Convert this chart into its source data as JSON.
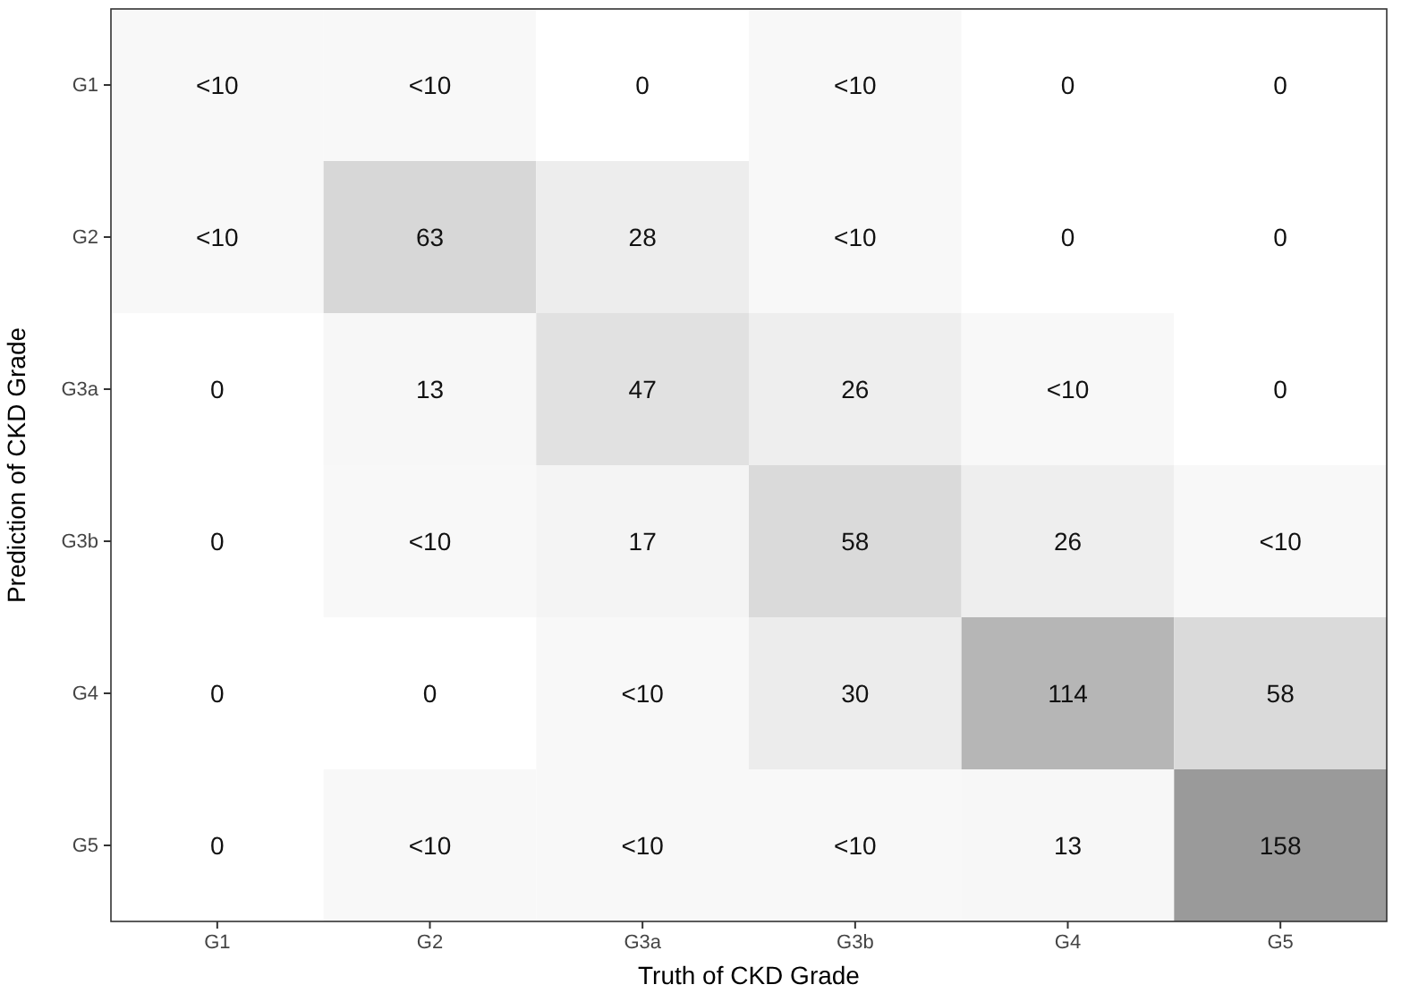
{
  "chart_data": {
    "type": "heatmap",
    "xlabel": "Truth of CKD Grade",
    "ylabel": "Prediction of CKD Grade",
    "categories": [
      "G1",
      "G2",
      "G3a",
      "G3b",
      "G4",
      "G5"
    ],
    "y_categories": [
      "G1",
      "G2",
      "G3a",
      "G3b",
      "G4",
      "G5"
    ],
    "cells": [
      [
        null,
        null,
        0,
        null,
        0,
        0
      ],
      [
        null,
        63,
        28,
        null,
        0,
        0
      ],
      [
        0,
        13,
        47,
        26,
        null,
        0
      ],
      [
        0,
        null,
        17,
        58,
        26,
        null
      ],
      [
        0,
        0,
        null,
        30,
        114,
        58
      ],
      [
        0,
        null,
        null,
        null,
        13,
        158
      ]
    ],
    "cell_labels": [
      [
        "<10",
        "<10",
        "0",
        "<10",
        "0",
        "0"
      ],
      [
        "<10",
        "63",
        "28",
        "<10",
        "0",
        "0"
      ],
      [
        "0",
        "13",
        "47",
        "26",
        "<10",
        "0"
      ],
      [
        "0",
        "<10",
        "17",
        "58",
        "26",
        "<10"
      ],
      [
        "0",
        "0",
        "<10",
        "30",
        "114",
        "58"
      ],
      [
        "0",
        "<10",
        "<10",
        "<10",
        "13",
        "158"
      ]
    ]
  }
}
